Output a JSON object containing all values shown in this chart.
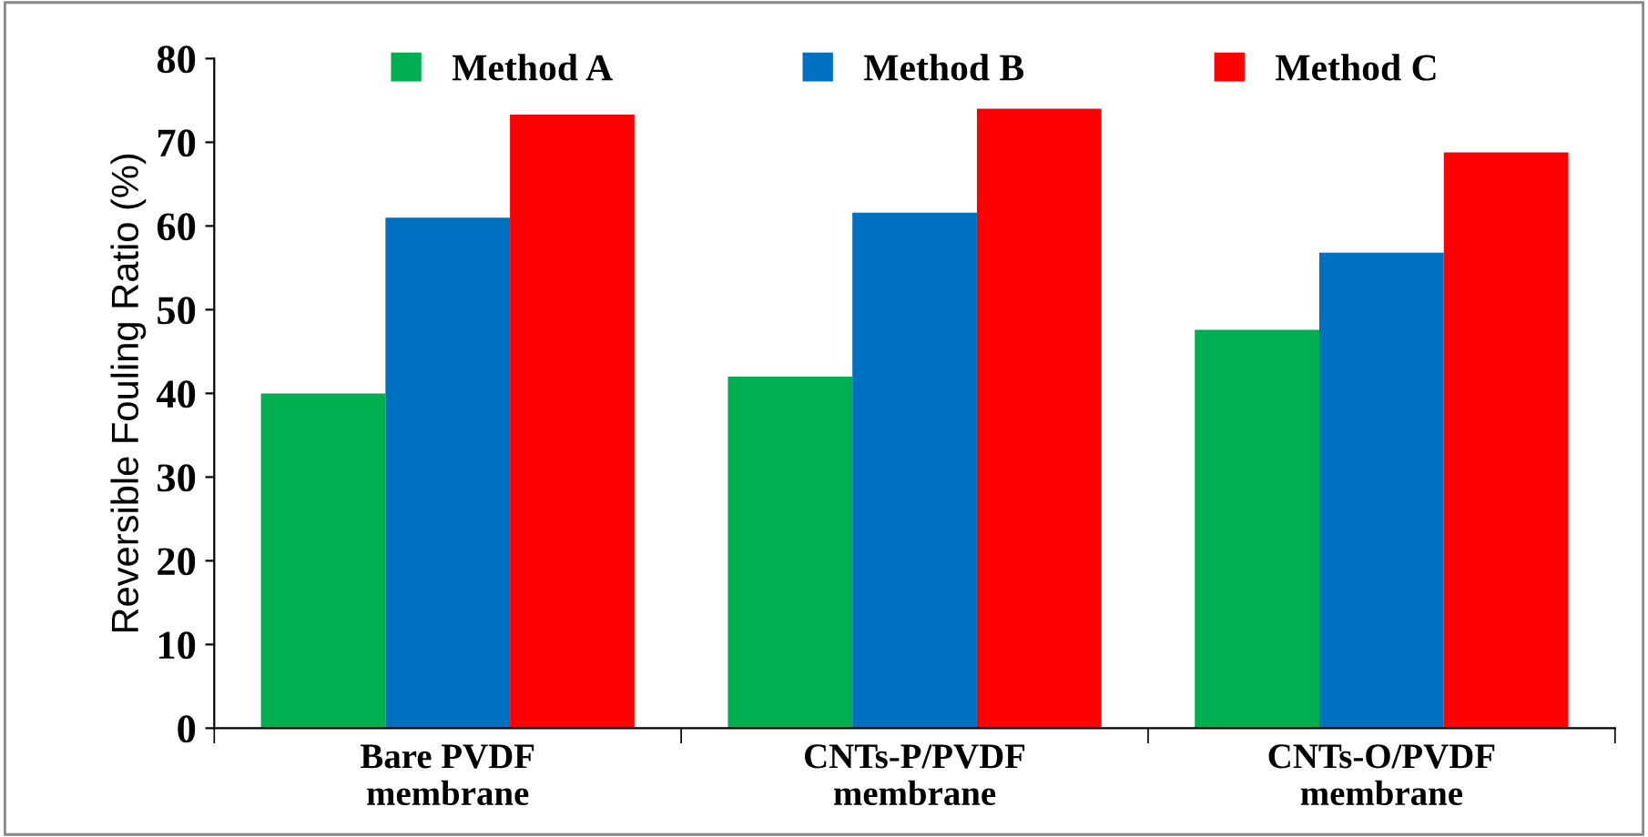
{
  "chart_data": {
    "type": "bar",
    "ylabel": "Reversible Fouling Ratio (%)",
    "categories": [
      "Bare PVDF\nmembrane",
      "CNTs-P/PVDF\nmembrane",
      "CNTs-O/PVDF\nmembrane"
    ],
    "series": [
      {
        "name": "Method A",
        "color": "#00b050",
        "values": [
          40,
          42,
          47.6
        ]
      },
      {
        "name": "Method B",
        "color": "#0070c0",
        "values": [
          61,
          61.6,
          56.8
        ]
      },
      {
        "name": "Method C",
        "color": "#ff0000",
        "values": [
          73.3,
          74,
          68.8
        ]
      }
    ],
    "ylim": [
      0,
      80
    ],
    "yticks": [
      0,
      10,
      20,
      30,
      40,
      50,
      60,
      70,
      80
    ],
    "grid": false,
    "legend": "top"
  }
}
